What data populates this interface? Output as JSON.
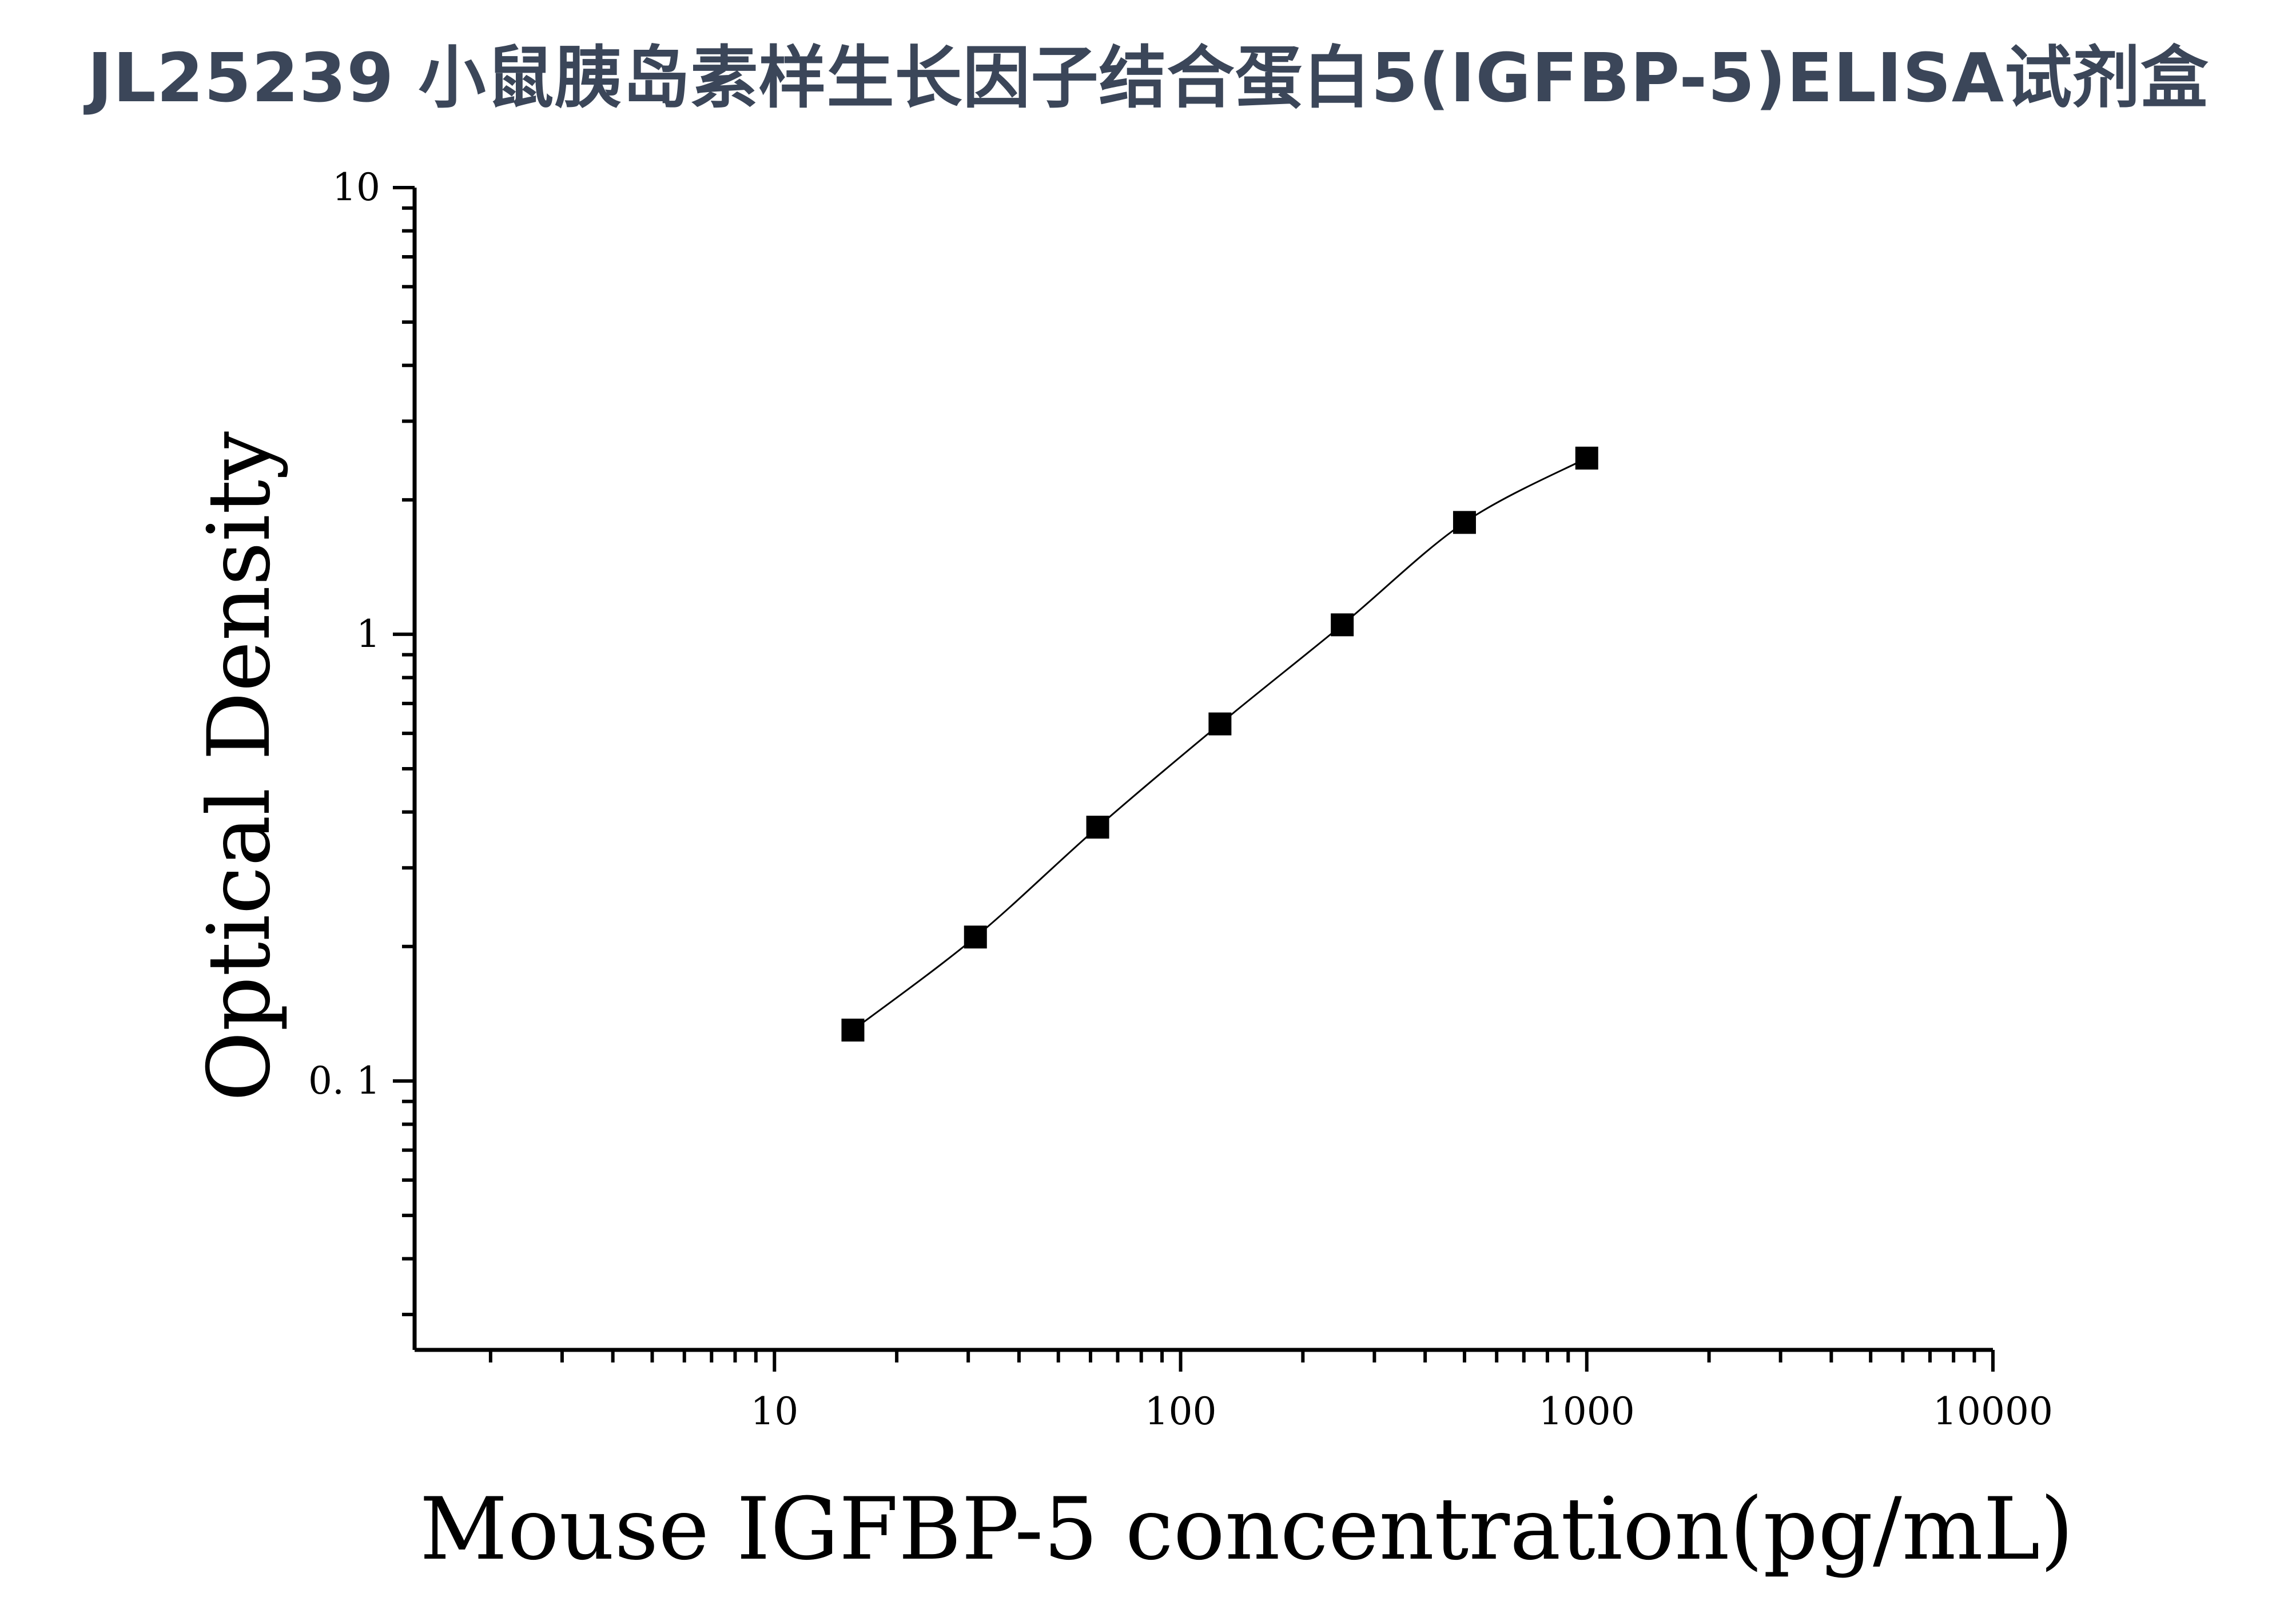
{
  "chart_data": {
    "type": "scatter",
    "title": "JL25239 小鼠胰岛素样生长因子结合蛋白5(IGFBP-5)ELISA试剂盒",
    "xlabel": "Mouse IGFBP-5 concentration(pg/mL)",
    "ylabel": "Optical Density",
    "x_scale": "log",
    "y_scale": "log",
    "xlim": [
      1.3,
      10000
    ],
    "ylim": [
      0.025,
      10
    ],
    "x_ticks": [
      {
        "value": 10,
        "label": "10"
      },
      {
        "value": 100,
        "label": "100"
      },
      {
        "value": 1000,
        "label": "1000"
      },
      {
        "value": 10000,
        "label": "10000"
      }
    ],
    "y_ticks": [
      {
        "value": 0.1,
        "label": "0. 1"
      },
      {
        "value": 1,
        "label": "1"
      },
      {
        "value": 10,
        "label": "10"
      }
    ],
    "series": [
      {
        "marker": "square",
        "x": [
          15.6,
          31.25,
          62.5,
          125,
          250,
          500,
          1000
        ],
        "y": [
          0.13,
          0.21,
          0.37,
          0.63,
          1.05,
          1.78,
          2.48
        ]
      }
    ],
    "fit_curve": true,
    "grid": false,
    "legend": "none",
    "colors": {
      "title": "#3b4659",
      "marks": "#000000"
    }
  }
}
